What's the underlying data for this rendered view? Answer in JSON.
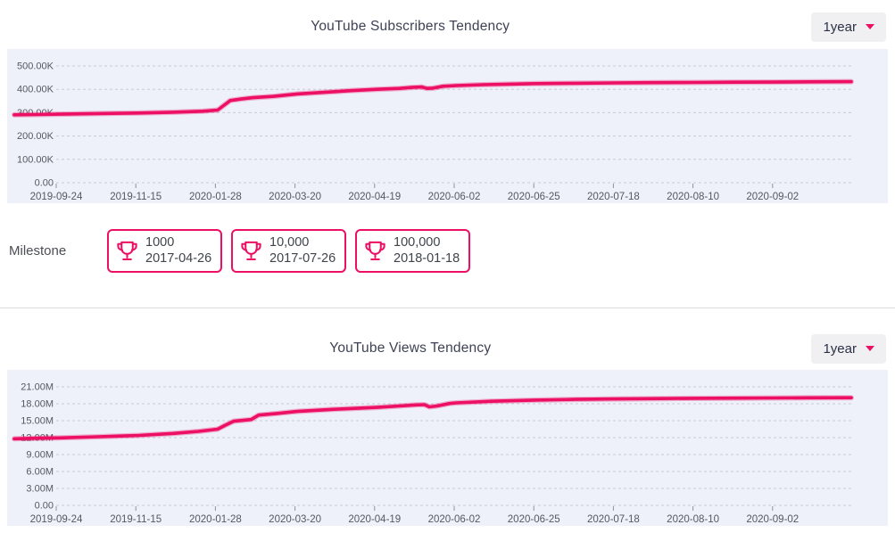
{
  "colors": {
    "accent_pink": "#ec0f63",
    "chart_background": "#eef1f9",
    "gridline": "#c9cad1",
    "axis_text": "#55585f",
    "title_text": "#3e4254",
    "button_bg": "#f0f0f3",
    "button_text": "#2b3045",
    "divider": "#dcdddf"
  },
  "subscribers_section": {
    "title": "YouTube Subscribers Tendency",
    "range_button": {
      "label": "1year",
      "icon": "caret-down"
    }
  },
  "milestones": {
    "label": "Milestone",
    "items": [
      {
        "icon": "trophy",
        "value": "1000",
        "date": "2017-04-26"
      },
      {
        "icon": "trophy",
        "value": "10,000",
        "date": "2017-07-26"
      },
      {
        "icon": "trophy",
        "value": "100,000",
        "date": "2018-01-18"
      }
    ]
  },
  "views_section": {
    "title": "YouTube Views Tendency",
    "range_button": {
      "label": "1year",
      "icon": "caret-down"
    }
  },
  "chart_data": [
    {
      "id": "subscribers",
      "type": "line",
      "title": "YouTube Subscribers Tendency",
      "legend_position": "none",
      "grid": "horizontal-dashed",
      "line_color": "#ec0f63",
      "ylim": [
        0,
        500000
      ],
      "y_tick_labels": [
        "500.00K",
        "400.00K",
        "300.00K",
        "200.00K",
        "100.00K",
        "0.00"
      ],
      "x_tick_labels": [
        "2019-09-24",
        "2019-11-15",
        "2020-01-28",
        "2020-03-20",
        "2020-04-19",
        "2020-06-02",
        "2020-06-25",
        "2020-07-18",
        "2020-08-10",
        "2020-09-02"
      ],
      "series_name": "Subscribers",
      "points": [
        [
          0.0,
          291000
        ],
        [
          0.027,
          292000
        ],
        [
          0.054,
          293500
        ],
        [
          0.1,
          296000
        ],
        [
          0.149,
          298500
        ],
        [
          0.19,
          302000
        ],
        [
          0.225,
          306000
        ],
        [
          0.243,
          311000
        ],
        [
          0.25,
          330000
        ],
        [
          0.258,
          352000
        ],
        [
          0.27,
          358000
        ],
        [
          0.285,
          364000
        ],
        [
          0.31,
          370000
        ],
        [
          0.338,
          380000
        ],
        [
          0.37,
          387000
        ],
        [
          0.4,
          394000
        ],
        [
          0.433,
          400000
        ],
        [
          0.46,
          404000
        ],
        [
          0.475,
          408000
        ],
        [
          0.487,
          410000
        ],
        [
          0.493,
          404000
        ],
        [
          0.5,
          405000
        ],
        [
          0.512,
          413000
        ],
        [
          0.528,
          416000
        ],
        [
          0.56,
          420000
        ],
        [
          0.59,
          422000
        ],
        [
          0.622,
          424500
        ],
        [
          0.67,
          426000
        ],
        [
          0.717,
          427500
        ],
        [
          0.76,
          428500
        ],
        [
          0.812,
          429500
        ],
        [
          0.86,
          430500
        ],
        [
          0.906,
          431000
        ],
        [
          0.95,
          432000
        ],
        [
          1.0,
          433000
        ]
      ]
    },
    {
      "id": "views",
      "type": "line",
      "title": "YouTube Views Tendency",
      "legend_position": "none",
      "grid": "horizontal-dashed",
      "line_color": "#ec0f63",
      "ylim": [
        0,
        21000000
      ],
      "y_tick_labels": [
        "21.00M",
        "18.00M",
        "15.00M",
        "12.00M",
        "9.00M",
        "6.00M",
        "3.00M",
        "0.00"
      ],
      "x_tick_labels": [
        "2019-09-24",
        "2019-11-15",
        "2020-01-28",
        "2020-03-20",
        "2020-04-19",
        "2020-06-02",
        "2020-06-25",
        "2020-07-18",
        "2020-08-10",
        "2020-09-02"
      ],
      "series_name": "Views",
      "points": [
        [
          0.0,
          11800000
        ],
        [
          0.03,
          11900000
        ],
        [
          0.054,
          11950000
        ],
        [
          0.1,
          12150000
        ],
        [
          0.149,
          12400000
        ],
        [
          0.19,
          12750000
        ],
        [
          0.22,
          13100000
        ],
        [
          0.243,
          13500000
        ],
        [
          0.252,
          14200000
        ],
        [
          0.262,
          14900000
        ],
        [
          0.283,
          15200000
        ],
        [
          0.292,
          16000000
        ],
        [
          0.315,
          16300000
        ],
        [
          0.338,
          16650000
        ],
        [
          0.38,
          17000000
        ],
        [
          0.433,
          17350000
        ],
        [
          0.46,
          17600000
        ],
        [
          0.48,
          17800000
        ],
        [
          0.49,
          17850000
        ],
        [
          0.496,
          17450000
        ],
        [
          0.505,
          17600000
        ],
        [
          0.52,
          18050000
        ],
        [
          0.528,
          18150000
        ],
        [
          0.57,
          18450000
        ],
        [
          0.622,
          18650000
        ],
        [
          0.67,
          18780000
        ],
        [
          0.717,
          18850000
        ],
        [
          0.77,
          18920000
        ],
        [
          0.812,
          18960000
        ],
        [
          0.86,
          19000000
        ],
        [
          0.906,
          19020000
        ],
        [
          0.95,
          19050000
        ],
        [
          1.0,
          19080000
        ]
      ]
    }
  ]
}
